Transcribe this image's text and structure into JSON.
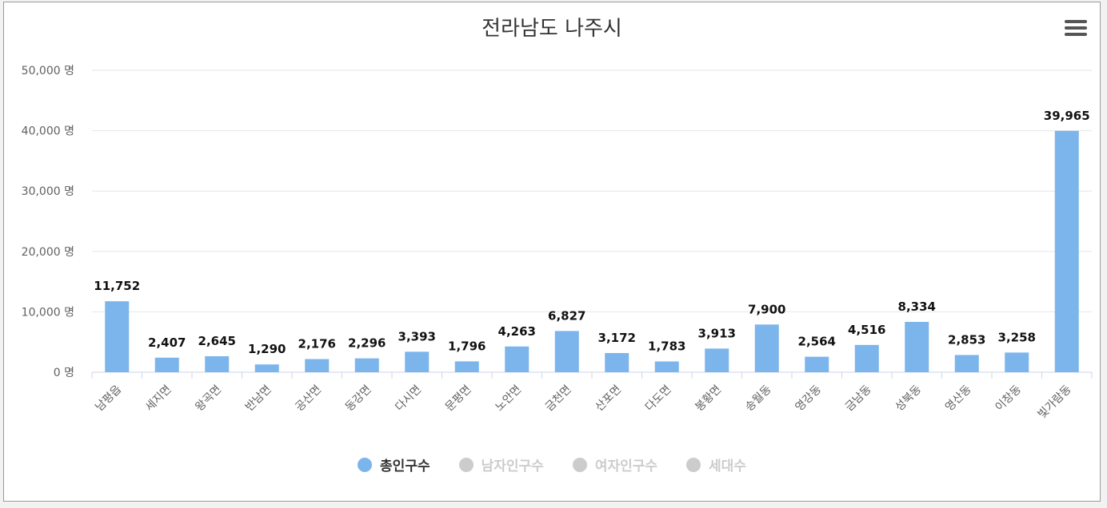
{
  "chart_data": {
    "type": "bar",
    "title": "전라남도 나주시",
    "categories": [
      "남평읍",
      "세지면",
      "왕곡면",
      "반남면",
      "공산면",
      "동강면",
      "다시면",
      "문평면",
      "노안면",
      "금천면",
      "산포면",
      "다도면",
      "봉황면",
      "송월동",
      "영강동",
      "금남동",
      "성북동",
      "영산동",
      "이창동",
      "빛가람동"
    ],
    "series": [
      {
        "name": "총인구수",
        "values": [
          11752,
          2407,
          2645,
          1290,
          2176,
          2296,
          3393,
          1796,
          4263,
          6827,
          3172,
          1783,
          3913,
          7900,
          2564,
          4516,
          8334,
          2853,
          3258,
          39965
        ],
        "color": "#7cb5ec"
      }
    ],
    "data_labels": [
      "11,752",
      "2,407",
      "2,645",
      "1,290",
      "2,176",
      "2,296",
      "3,393",
      "1,796",
      "4,263",
      "6,827",
      "3,172",
      "1,783",
      "3,913",
      "7,900",
      "2,564",
      "4,516",
      "8,334",
      "2,853",
      "3,258",
      "39,965"
    ],
    "y_ticks": [
      0,
      10000,
      20000,
      30000,
      40000,
      50000
    ],
    "y_tick_labels": [
      "0 명",
      "10,000 명",
      "20,000 명",
      "30,000 명",
      "40,000 명",
      "50,000 명"
    ],
    "ylim": [
      0,
      50000
    ],
    "grid": true,
    "legend_position": "bottom-center"
  },
  "legend": [
    {
      "label": "총인구수",
      "color": "#7cb5ec",
      "active": true
    },
    {
      "label": "남자인구수",
      "color": "#cccccc",
      "active": false
    },
    {
      "label": "여자인구수",
      "color": "#cccccc",
      "active": false
    },
    {
      "label": "세대수",
      "color": "#cccccc",
      "active": false
    }
  ],
  "menu_icon": "hamburger-menu-icon"
}
